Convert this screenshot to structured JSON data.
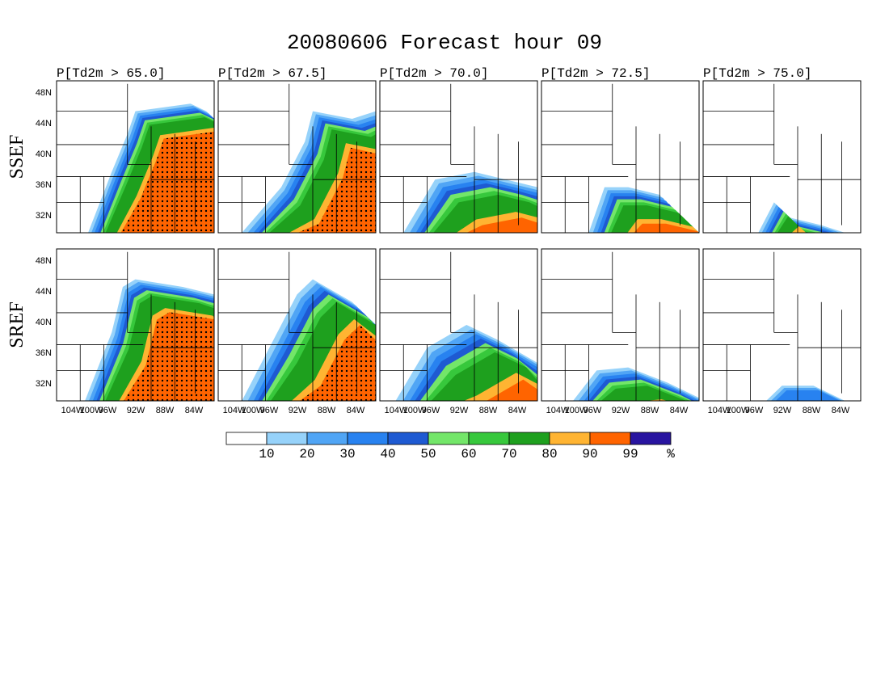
{
  "title": "20080606 Forecast hour 09",
  "columns": [
    "P[Td2m > 65.0]",
    "P[Td2m > 67.5]",
    "P[Td2m > 70.0]",
    "P[Td2m > 72.5]",
    "P[Td2m > 75.0]"
  ],
  "rows": [
    "SSEF",
    "SREF"
  ],
  "lat_labels": [
    "48N",
    "44N",
    "40N",
    "36N",
    "32N"
  ],
  "lon_labels": [
    "104W",
    "100W",
    "96W",
    "92W",
    "88W",
    "84W"
  ],
  "colorbar": {
    "colors": [
      "#ffffff",
      "#96d2fa",
      "#50a5f5",
      "#2882f0",
      "#1e5ad2",
      "#73e669",
      "#37c83c",
      "#1ea01e",
      "#ffb432",
      "#ff6400",
      "#2814a0"
    ],
    "levels": [
      10,
      20,
      30,
      40,
      50,
      60,
      70,
      80,
      90,
      99
    ],
    "unit": "%"
  }
}
